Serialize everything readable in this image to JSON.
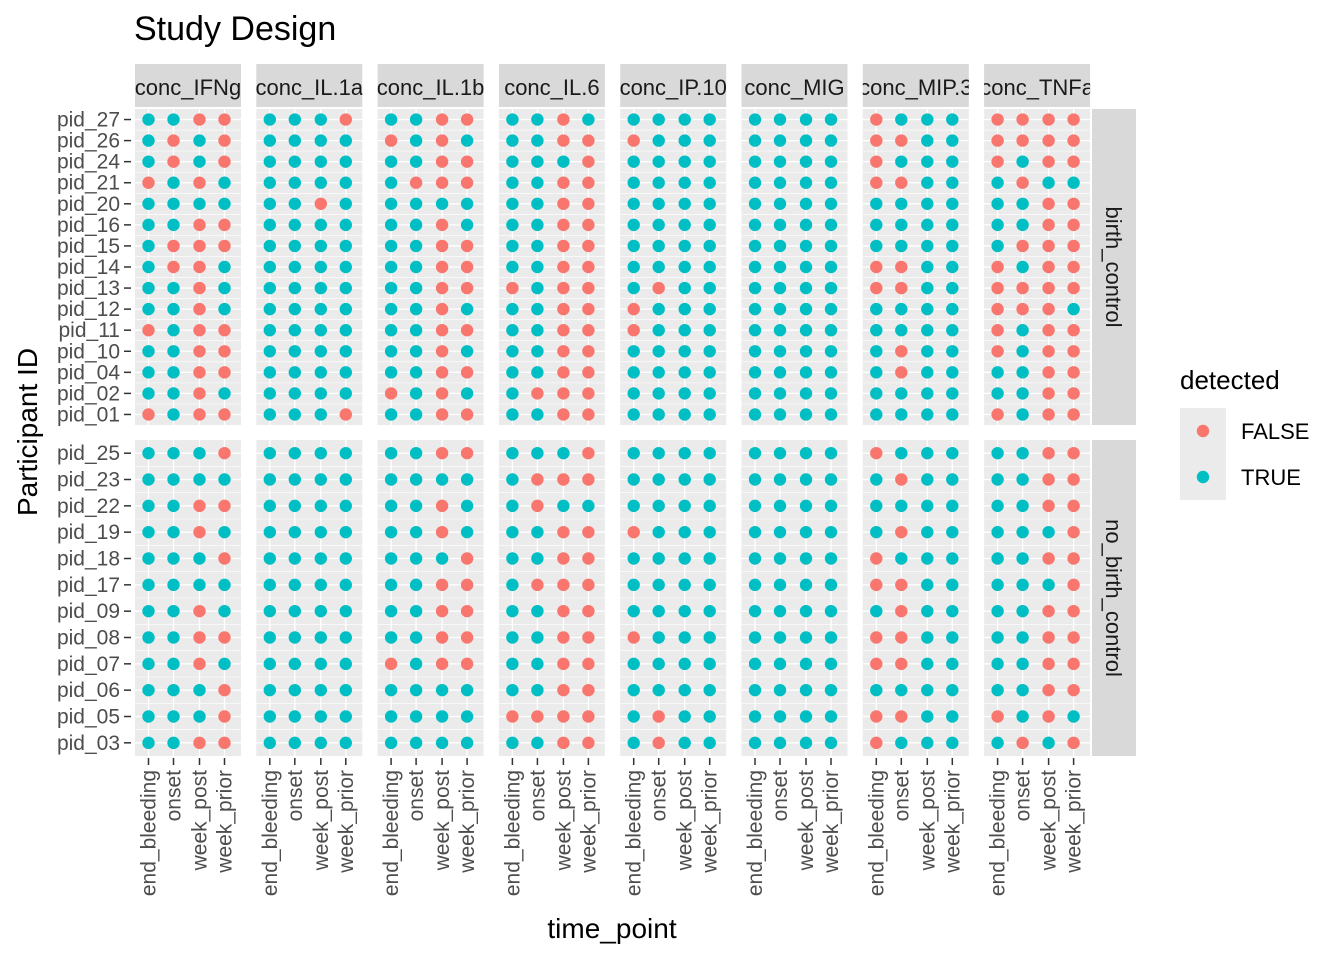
{
  "chart_data": {
    "type": "scatter",
    "title": "Study Design",
    "xlabel": "time_point",
    "ylabel": "Participant ID",
    "grid": true,
    "legend_position": "right",
    "x_categories": [
      "end_bleeding",
      "onset",
      "week_post",
      "week_prior"
    ],
    "facet_columns": [
      "conc_IFNg",
      "conc_IL.1a",
      "conc_IL.1b",
      "conc_IL.6",
      "conc_IP.10",
      "conc_MIG",
      "conc_MIP.3",
      "conc_TNFa"
    ],
    "facet_rows": [
      {
        "label": "birth_control",
        "participants": [
          "pid_27",
          "pid_26",
          "pid_24",
          "pid_21",
          "pid_20",
          "pid_16",
          "pid_15",
          "pid_14",
          "pid_13",
          "pid_12",
          "pid_11",
          "pid_10",
          "pid_04",
          "pid_02",
          "pid_01"
        ]
      },
      {
        "label": "no_birth_control",
        "participants": [
          "pid_25",
          "pid_23",
          "pid_22",
          "pid_19",
          "pid_18",
          "pid_17",
          "pid_09",
          "pid_08",
          "pid_07",
          "pid_06",
          "pid_05",
          "pid_03"
        ]
      }
    ],
    "legend": {
      "title": "detected",
      "entries": [
        {
          "label": "FALSE",
          "color": "#F8766D"
        },
        {
          "label": "TRUE",
          "color": "#00BFC4"
        }
      ]
    },
    "detected_note": "Each string encodes detected per time point in x_categories order (T = TRUE, F = FALSE); rows follow participants order.",
    "detected": {
      "birth_control": {
        "conc_IFNg": [
          "TTFF",
          "TFTF",
          "TFTF",
          "FTFT",
          "TTTT",
          "TTFF",
          "TFFF",
          "TFFT",
          "TTFT",
          "TTFT",
          "FTFF",
          "TTFF",
          "TTFF",
          "TTFT",
          "FTFF"
        ],
        "conc_IL.1a": [
          "TTTF",
          "TTTT",
          "TTTT",
          "TTTT",
          "TTFT",
          "TTTT",
          "TTTT",
          "TTTT",
          "TTTT",
          "TTTT",
          "TTTT",
          "TTTT",
          "TTTT",
          "TTTT",
          "TTTF"
        ],
        "conc_IL.1b": [
          "TTFF",
          "FTFT",
          "TTFF",
          "TFFF",
          "TTTT",
          "TTFT",
          "TTFF",
          "TTFF",
          "TTFF",
          "TTFT",
          "TTFF",
          "TTFT",
          "TTFF",
          "FTFT",
          "TTFF"
        ],
        "conc_IL.6": [
          "TTFT",
          "TTFF",
          "TTTF",
          "TTFF",
          "TTFF",
          "TTFF",
          "TTFF",
          "TTFF",
          "FTFF",
          "TTFF",
          "TTFF",
          "TTFF",
          "TTFF",
          "TFFF",
          "TTFF"
        ],
        "conc_IP.10": [
          "TTTT",
          "FTTT",
          "TTTT",
          "TTTT",
          "TTTT",
          "TTTT",
          "TTTT",
          "TTTT",
          "TFTT",
          "FTTT",
          "FTTT",
          "TTTT",
          "TTTT",
          "TTTT",
          "TTTT"
        ],
        "conc_MIG": [
          "TTTT",
          "TTTT",
          "TTTT",
          "TTTT",
          "TTTT",
          "TTTT",
          "TTTT",
          "TTTT",
          "TTTT",
          "TTTT",
          "TTTT",
          "TTTT",
          "TTTT",
          "TTTT",
          "TTTT"
        ],
        "conc_MIP.3": [
          "FTTT",
          "FFTT",
          "FTTT",
          "FFTT",
          "TTTT",
          "TTTT",
          "TTTT",
          "FFTT",
          "FFTT",
          "TTTT",
          "TTTT",
          "TFTT",
          "TFTT",
          "TTTT",
          "TTTT"
        ],
        "conc_TNFa": [
          "FFFF",
          "FFFF",
          "FTFF",
          "TFTT",
          "TTFF",
          "TTFF",
          "TFFF",
          "FTFF",
          "FFFF",
          "FFFT",
          "FTFF",
          "FTFF",
          "TTFF",
          "TTFF",
          "FTFF"
        ]
      },
      "no_birth_control": {
        "conc_IFNg": [
          "TTTF",
          "TTTT",
          "TTFF",
          "TTFT",
          "TTTF",
          "TTTT",
          "TTFT",
          "TTFF",
          "TTFT",
          "TTTF",
          "TTTF",
          "TTFF"
        ],
        "conc_IL.1a": [
          "TTTT",
          "TTTT",
          "TTTT",
          "TTTT",
          "TTTT",
          "TTTT",
          "TTTT",
          "TTTT",
          "TTTT",
          "TTTT",
          "TTTT",
          "TTTT"
        ],
        "conc_IL.1b": [
          "TTFF",
          "TTTT",
          "TTFT",
          "TTFT",
          "TTTF",
          "TTFF",
          "TTFF",
          "TTFF",
          "FTFF",
          "TTTT",
          "TTTT",
          "TTTT"
        ],
        "conc_IL.6": [
          "TTTF",
          "TFFF",
          "TFTT",
          "TTFF",
          "TTFF",
          "TFFF",
          "TTFF",
          "TTFF",
          "TTFF",
          "TTFF",
          "FFFF",
          "TTFF"
        ],
        "conc_IP.10": [
          "TTTT",
          "TTTT",
          "TTTT",
          "FTTT",
          "TTTT",
          "TTTT",
          "TTTT",
          "FTTT",
          "TTTT",
          "TTTT",
          "TFTT",
          "TFTT"
        ],
        "conc_MIG": [
          "TTTT",
          "TTTT",
          "TTTT",
          "TTTT",
          "TTTT",
          "TTTT",
          "TTTT",
          "TTTT",
          "TTTT",
          "TTTT",
          "TTTT",
          "TTTT"
        ],
        "conc_MIP.3": [
          "FTTT",
          "TFTT",
          "TTTT",
          "TFTT",
          "FTTT",
          "FFTT",
          "TFTT",
          "FFTT",
          "FFTT",
          "TTTT",
          "FFTT",
          "FTTT"
        ],
        "conc_TNFa": [
          "TTFF",
          "TTFF",
          "TTFF",
          "TTTF",
          "TTFF",
          "TTTF",
          "TTFF",
          "TTFF",
          "TTFF",
          "TTFF",
          "FTFT",
          "TFTF"
        ]
      }
    }
  }
}
